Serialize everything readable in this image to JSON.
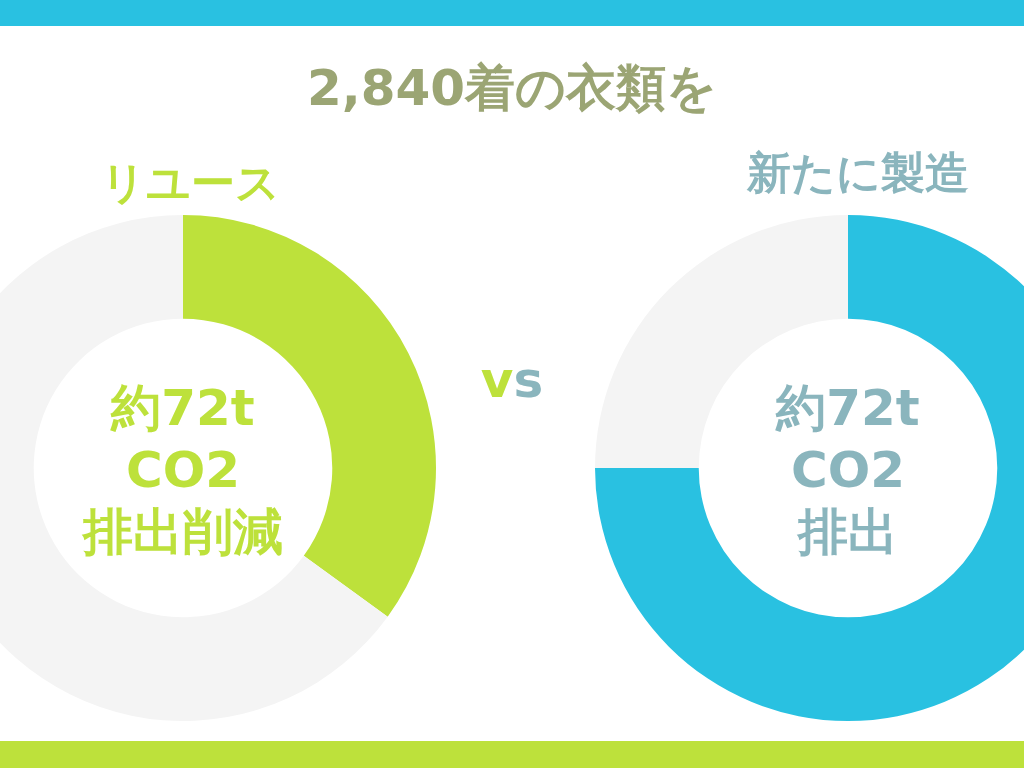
{
  "chart_data": [
    {
      "type": "other",
      "title": "2,840着の衣類を",
      "annotations": [
        "vs"
      ]
    },
    {
      "type": "donut",
      "title": "リユース",
      "categories": [
        null,
        null
      ],
      "values": [
        35,
        65
      ],
      "colors": [
        "#bde13b",
        "#f4f4f4"
      ],
      "annotations": [
        "約72t",
        "CO2",
        "排出削減"
      ]
    },
    {
      "type": "donut",
      "title": "新たに製造",
      "categories": [
        null,
        null
      ],
      "values": [
        75,
        25
      ],
      "colors": [
        "#29c1e1",
        "#f4f4f4"
      ],
      "annotations": [
        "約72t",
        "CO2",
        "排出"
      ]
    }
  ]
}
